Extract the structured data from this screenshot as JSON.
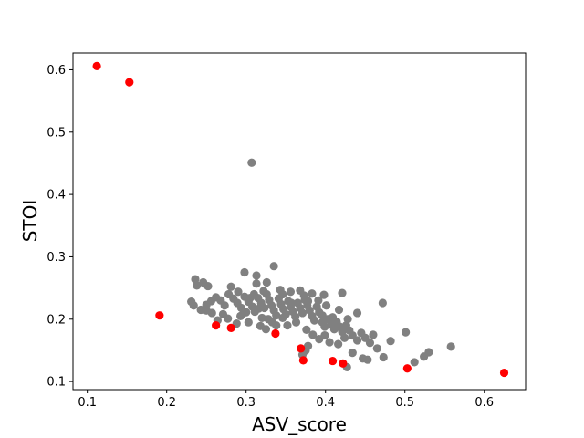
{
  "chart_data": {
    "type": "scatter",
    "title": "",
    "xlabel": "ASV_score",
    "ylabel": "STOI",
    "xlim": [
      0.082,
      0.652
    ],
    "ylim": [
      0.087,
      0.627
    ],
    "xticks": [
      "0.1",
      "0.2",
      "0.3",
      "0.4",
      "0.5",
      "0.6"
    ],
    "yticks": [
      "0.1",
      "0.2",
      "0.3",
      "0.4",
      "0.5",
      "0.6"
    ],
    "grid": false,
    "legend": "none",
    "series": [
      {
        "color": "#808080",
        "points": [
          [
            0.307,
            0.451
          ],
          [
            0.335,
            0.285
          ],
          [
            0.298,
            0.275
          ],
          [
            0.313,
            0.27
          ],
          [
            0.236,
            0.264
          ],
          [
            0.246,
            0.259
          ],
          [
            0.238,
            0.254
          ],
          [
            0.252,
            0.253
          ],
          [
            0.281,
            0.252
          ],
          [
            0.29,
            0.244
          ],
          [
            0.313,
            0.257
          ],
          [
            0.326,
            0.259
          ],
          [
            0.343,
            0.247
          ],
          [
            0.356,
            0.244
          ],
          [
            0.368,
            0.246
          ],
          [
            0.383,
            0.241
          ],
          [
            0.398,
            0.239
          ],
          [
            0.421,
            0.242
          ],
          [
            0.472,
            0.226
          ],
          [
            0.231,
            0.228
          ],
          [
            0.234,
            0.222
          ],
          [
            0.243,
            0.215
          ],
          [
            0.25,
            0.223
          ],
          [
            0.256,
            0.229
          ],
          [
            0.262,
            0.235
          ],
          [
            0.268,
            0.23
          ],
          [
            0.273,
            0.222
          ],
          [
            0.278,
            0.24
          ],
          [
            0.284,
            0.233
          ],
          [
            0.289,
            0.226
          ],
          [
            0.294,
            0.218
          ],
          [
            0.298,
            0.236
          ],
          [
            0.303,
            0.228
          ],
          [
            0.308,
            0.22
          ],
          [
            0.311,
            0.212
          ],
          [
            0.315,
            0.234
          ],
          [
            0.319,
            0.226
          ],
          [
            0.323,
            0.218
          ],
          [
            0.326,
            0.24
          ],
          [
            0.329,
            0.231
          ],
          [
            0.332,
            0.222
          ],
          [
            0.335,
            0.214
          ],
          [
            0.338,
            0.206
          ],
          [
            0.341,
            0.233
          ],
          [
            0.344,
            0.224
          ],
          [
            0.347,
            0.216
          ],
          [
            0.35,
            0.208
          ],
          [
            0.353,
            0.229
          ],
          [
            0.356,
            0.22
          ],
          [
            0.359,
            0.212
          ],
          [
            0.362,
            0.204
          ],
          [
            0.365,
            0.226
          ],
          [
            0.368,
            0.218
          ],
          [
            0.371,
            0.21
          ],
          [
            0.374,
            0.231
          ],
          [
            0.377,
            0.222
          ],
          [
            0.38,
            0.214
          ],
          [
            0.383,
            0.205
          ],
          [
            0.386,
            0.198
          ],
          [
            0.389,
            0.22
          ],
          [
            0.392,
            0.211
          ],
          [
            0.396,
            0.195
          ],
          [
            0.399,
            0.188
          ],
          [
            0.403,
            0.2
          ],
          [
            0.407,
            0.192
          ],
          [
            0.411,
            0.184
          ],
          [
            0.414,
            0.196
          ],
          [
            0.418,
            0.188
          ],
          [
            0.421,
            0.18
          ],
          [
            0.426,
            0.19
          ],
          [
            0.43,
            0.182
          ],
          [
            0.434,
            0.174
          ],
          [
            0.44,
            0.166
          ],
          [
            0.445,
            0.178
          ],
          [
            0.45,
            0.17
          ],
          [
            0.456,
            0.162
          ],
          [
            0.46,
            0.175
          ],
          [
            0.465,
            0.153
          ],
          [
            0.482,
            0.165
          ],
          [
            0.501,
            0.179
          ],
          [
            0.512,
            0.131
          ],
          [
            0.524,
            0.14
          ],
          [
            0.53,
            0.147
          ],
          [
            0.558,
            0.156
          ],
          [
            0.44,
            0.21
          ],
          [
            0.303,
            0.195
          ],
          [
            0.318,
            0.189
          ],
          [
            0.325,
            0.184
          ],
          [
            0.338,
            0.19
          ],
          [
            0.352,
            0.19
          ],
          [
            0.376,
            0.183
          ],
          [
            0.384,
            0.175
          ],
          [
            0.392,
            0.168
          ],
          [
            0.399,
            0.174
          ],
          [
            0.405,
            0.163
          ],
          [
            0.416,
            0.16
          ],
          [
            0.424,
            0.17
          ],
          [
            0.434,
            0.146
          ],
          [
            0.427,
            0.123
          ],
          [
            0.447,
            0.137
          ],
          [
            0.453,
            0.135
          ],
          [
            0.473,
            0.139
          ],
          [
            0.371,
            0.143
          ],
          [
            0.375,
            0.15
          ],
          [
            0.378,
            0.157
          ],
          [
            0.264,
            0.198
          ],
          [
            0.271,
            0.208
          ],
          [
            0.277,
            0.201
          ],
          [
            0.288,
            0.193
          ],
          [
            0.293,
            0.205
          ],
          [
            0.25,
            0.214
          ],
          [
            0.257,
            0.21
          ],
          [
            0.363,
            0.195
          ],
          [
            0.328,
            0.2
          ],
          [
            0.333,
            0.195
          ],
          [
            0.346,
            0.202
          ],
          [
            0.357,
            0.226
          ],
          [
            0.346,
            0.24
          ],
          [
            0.322,
            0.245
          ],
          [
            0.305,
            0.234
          ],
          [
            0.391,
            0.23
          ],
          [
            0.401,
            0.222
          ],
          [
            0.32,
            0.202
          ],
          [
            0.316,
            0.217
          ],
          [
            0.373,
            0.238
          ],
          [
            0.378,
            0.229
          ],
          [
            0.396,
            0.206
          ],
          [
            0.409,
            0.203
          ],
          [
            0.417,
            0.215
          ],
          [
            0.428,
            0.2
          ],
          [
            0.3,
            0.211
          ],
          [
            0.31,
            0.24
          ]
        ]
      },
      {
        "color": "#ff0000",
        "points": [
          [
            0.112,
            0.606
          ],
          [
            0.153,
            0.58
          ],
          [
            0.191,
            0.206
          ],
          [
            0.262,
            0.19
          ],
          [
            0.281,
            0.186
          ],
          [
            0.337,
            0.177
          ],
          [
            0.369,
            0.153
          ],
          [
            0.372,
            0.134
          ],
          [
            0.409,
            0.133
          ],
          [
            0.422,
            0.129
          ],
          [
            0.503,
            0.121
          ],
          [
            0.625,
            0.114
          ]
        ]
      }
    ]
  }
}
